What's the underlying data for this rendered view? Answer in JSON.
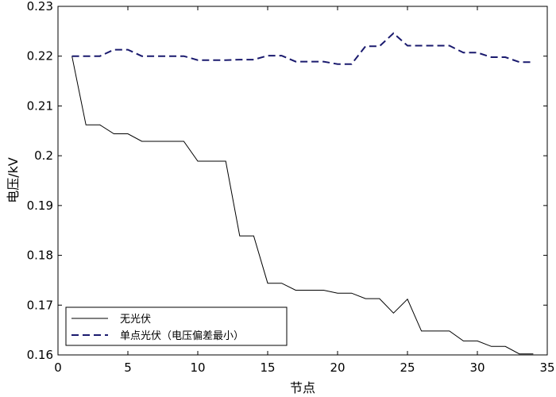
{
  "chart_data": {
    "type": "line",
    "xlabel": "节点",
    "ylabel": "电压/kV",
    "xlim": [
      0,
      35
    ],
    "ylim": [
      0.16,
      0.23
    ],
    "xticks": [
      0,
      5,
      10,
      15,
      20,
      25,
      30,
      35
    ],
    "yticks": [
      0.16,
      0.17,
      0.18,
      0.19,
      0.2,
      0.21,
      0.22,
      0.23
    ],
    "grid": false,
    "legend_position": "bottom-left",
    "series": [
      {
        "name": "无光伏",
        "color": "#000000",
        "style": "solid",
        "x": [
          1,
          2,
          3,
          4,
          5,
          6,
          7,
          8,
          9,
          10,
          11,
          12,
          13,
          14,
          15,
          16,
          17,
          18,
          19,
          20,
          21,
          22,
          23,
          24,
          25,
          26,
          27,
          28,
          29,
          30,
          31,
          32,
          33,
          34
        ],
        "y": [
          0.22,
          0.2062,
          0.2062,
          0.2044,
          0.2044,
          0.2029,
          0.2029,
          0.2029,
          0.2029,
          0.1989,
          0.1989,
          0.1989,
          0.1839,
          0.1839,
          0.1744,
          0.1744,
          0.173,
          0.173,
          0.173,
          0.1724,
          0.1724,
          0.1713,
          0.1713,
          0.1684,
          0.1712,
          0.1648,
          0.1648,
          0.1648,
          0.1628,
          0.1628,
          0.1617,
          0.1617,
          0.1602,
          0.1602
        ]
      },
      {
        "name": "单点光伏（电压偏差最小）",
        "color": "#1a1a6e",
        "style": "dashed",
        "x": [
          1,
          2,
          3,
          4,
          5,
          6,
          7,
          8,
          9,
          10,
          11,
          12,
          13,
          14,
          15,
          16,
          17,
          18,
          19,
          20,
          21,
          22,
          23,
          24,
          25,
          26,
          27,
          28,
          29,
          30,
          31,
          32,
          33,
          34
        ],
        "y": [
          0.22,
          0.22,
          0.22,
          0.2213,
          0.2213,
          0.22,
          0.22,
          0.22,
          0.22,
          0.2192,
          0.2192,
          0.2192,
          0.2193,
          0.2193,
          0.2201,
          0.2201,
          0.2189,
          0.2189,
          0.2189,
          0.2184,
          0.2184,
          0.222,
          0.222,
          0.2246,
          0.2221,
          0.2221,
          0.2221,
          0.2221,
          0.2207,
          0.2207,
          0.2198,
          0.2198,
          0.2188,
          0.2188
        ]
      }
    ]
  }
}
